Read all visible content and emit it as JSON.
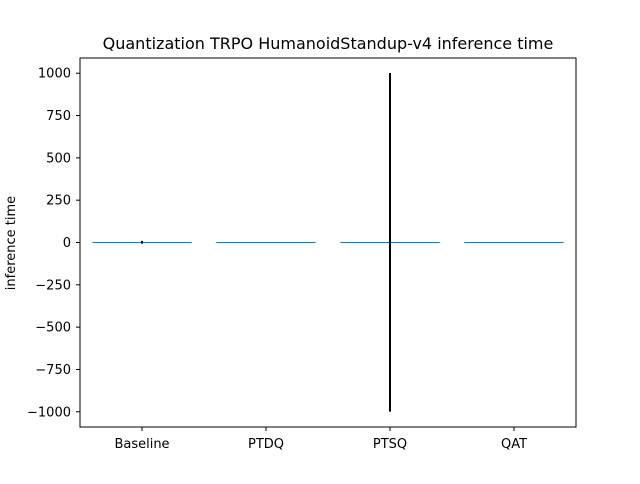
{
  "chart_data": {
    "type": "bar",
    "title": "Quantization TRPO HumanoidStandup-v4 inference time",
    "xlabel": "",
    "ylabel": "inference time",
    "categories": [
      "Baseline",
      "PTDQ",
      "PTSQ",
      "QAT"
    ],
    "values": [
      1.2,
      0.9,
      1.0,
      0.8
    ],
    "error": [
      8,
      0,
      1000,
      0
    ],
    "ylim": [
      -1090,
      1090
    ],
    "yticks": [
      -1000,
      -750,
      -500,
      -250,
      0,
      250,
      500,
      750,
      1000
    ],
    "ytick_labels": [
      "−1000",
      "−750",
      "−500",
      "−250",
      "0",
      "250",
      "500",
      "750",
      "1000"
    ],
    "grid": false,
    "bar_color": "#1f77b4",
    "error_color": "#000000"
  }
}
